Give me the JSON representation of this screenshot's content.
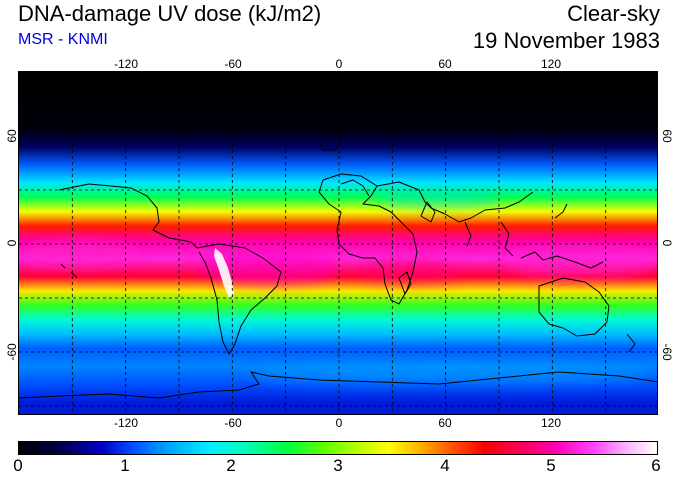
{
  "title": "DNA-damage UV dose (kJ/m2)",
  "source": "MSR - KNMI",
  "sky": "Clear-sky",
  "date": "19 November 1983",
  "axes": {
    "lon_labels": [
      "-120",
      "-60",
      "0",
      "60",
      "120"
    ],
    "lat_labels_left": [
      "60",
      "0",
      "-60"
    ],
    "lat_labels_right": [
      "60",
      "0",
      "-60"
    ]
  },
  "colorbar": {
    "min": 0,
    "max": 6,
    "labels": [
      "0",
      "1",
      "2",
      "3",
      "4",
      "5",
      "6"
    ]
  },
  "colors": {
    "source_text": "#0000e0",
    "coast": "#000000",
    "grid": "#000000"
  },
  "field_bands": [
    {
      "lat": 90,
      "value": 0.0
    },
    {
      "lat": 62,
      "value": 0.05
    },
    {
      "lat": 52,
      "value": 0.45
    },
    {
      "lat": 42,
      "value": 1.15
    },
    {
      "lat": 32,
      "value": 1.75
    },
    {
      "lat": 24,
      "value": 2.45
    },
    {
      "lat": 16,
      "value": 3.45
    },
    {
      "lat": 8,
      "value": 4.3
    },
    {
      "lat": 0,
      "value": 5.0
    },
    {
      "lat": -10,
      "value": 5.25
    },
    {
      "lat": -20,
      "value": 4.6
    },
    {
      "lat": -28,
      "value": 3.6
    },
    {
      "lat": -36,
      "value": 2.7
    },
    {
      "lat": -44,
      "value": 2.0
    },
    {
      "lat": -52,
      "value": 1.55
    },
    {
      "lat": -60,
      "value": 1.15
    },
    {
      "lat": -70,
      "value": 1.3
    },
    {
      "lat": -80,
      "value": 1.1
    },
    {
      "lat": -90,
      "value": 0.9
    }
  ]
}
